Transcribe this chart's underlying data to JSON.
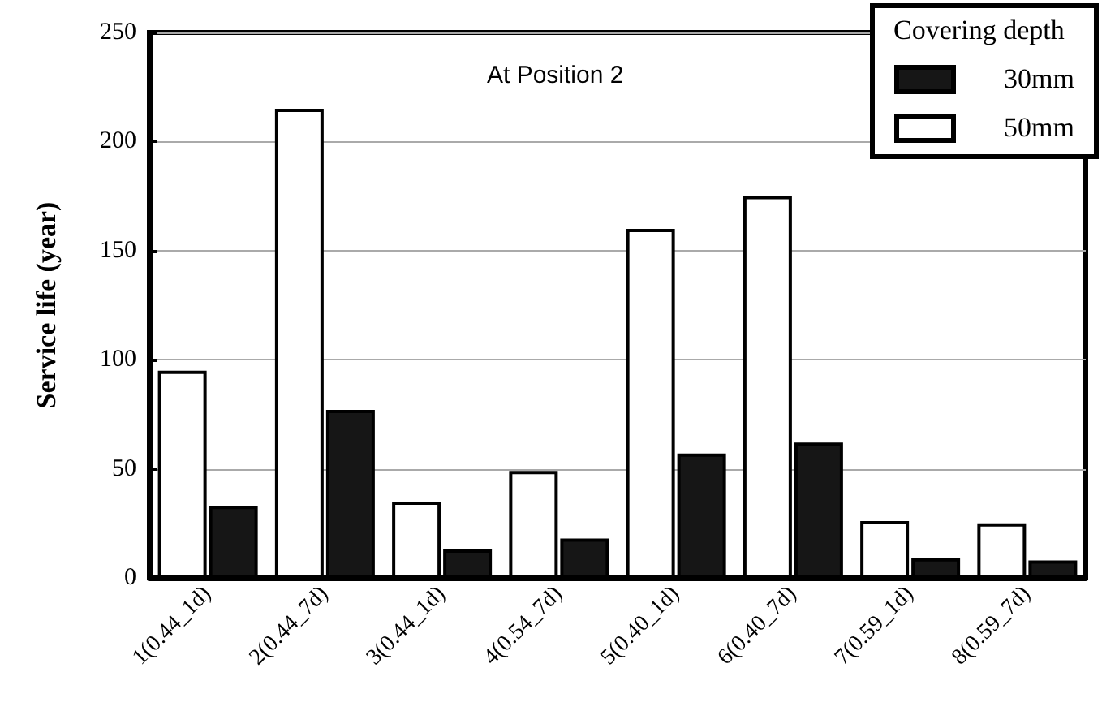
{
  "chart_data": {
    "type": "bar",
    "ylabel": "Service life (year)",
    "annotations": [
      "At Position 2"
    ],
    "legend_title": "Covering depth",
    "categories": [
      "1(0.44_1d)",
      "2(0.44_7d)",
      "3(0.44_1d)",
      "4(0.54_7d)",
      "5(0.40_1d)",
      "6(0.40_7d)",
      "7(0.59_1d)",
      "8(0.59_7d)"
    ],
    "series": [
      {
        "name": "50mm",
        "color": "#ffffff",
        "values": [
          95,
          215,
          35,
          49,
          160,
          175,
          26,
          25
        ]
      },
      {
        "name": "30mm",
        "color": "#161616",
        "values": [
          33,
          77,
          13,
          18,
          57,
          62,
          9,
          8
        ]
      }
    ],
    "ylim": [
      0,
      250
    ],
    "yticks": [
      0,
      50,
      100,
      150,
      200,
      250
    ],
    "grid": "y",
    "legend": "top right"
  }
}
